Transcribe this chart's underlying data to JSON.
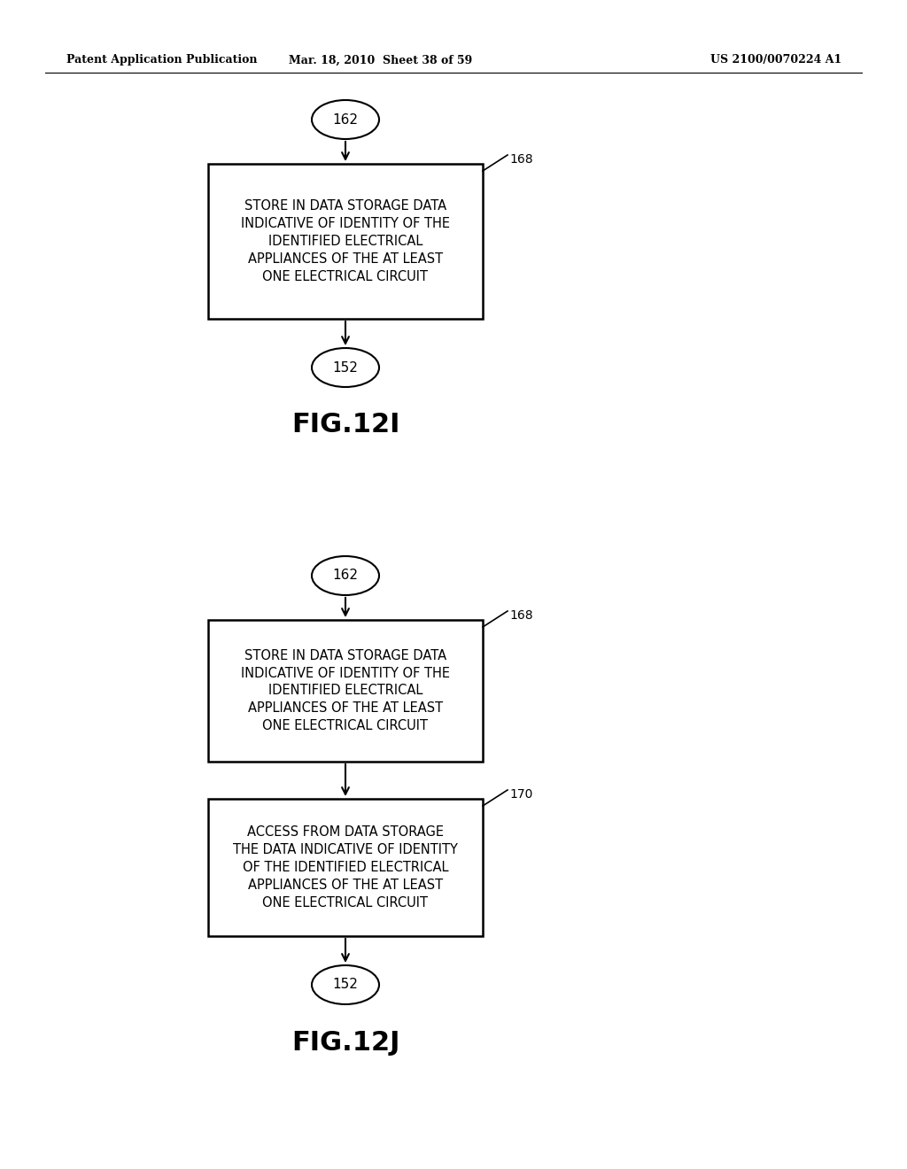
{
  "bg_color": "#ffffff",
  "header_left": "Patent Application Publication",
  "header_mid": "Mar. 18, 2010  Sheet 38 of 59",
  "header_right": "US 2100/0070224 A1",
  "fig1_title": "FIG.12I",
  "fig2_title": "FIG.12J",
  "box1_text": "STORE IN DATA STORAGE DATA\nINDICATIVE OF IDENTITY OF THE\nIDENTIFIED ELECTRICAL\nAPPLIANCES OF THE AT LEAST\nONE ELECTRICAL CIRCUIT",
  "box2_text": "STORE IN DATA STORAGE DATA\nINDICATIVE OF IDENTITY OF THE\nIDENTIFIED ELECTRICAL\nAPPLIANCES OF THE AT LEAST\nONE ELECTRICAL CIRCUIT",
  "box3_text": "ACCESS FROM DATA STORAGE\nTHE DATA INDICATIVE OF IDENTITY\nOF THE IDENTIFIED ELECTRICAL\nAPPLIANCES OF THE AT LEAST\nONE ELECTRICAL CIRCUIT",
  "label_162": "162",
  "label_152": "152",
  "label_168": "168",
  "label_170": "170"
}
